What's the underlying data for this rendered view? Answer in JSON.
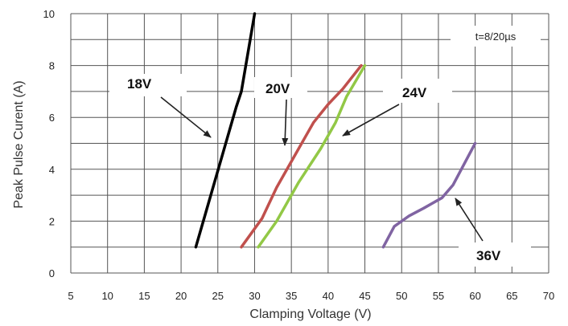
{
  "chart_data": {
    "type": "line",
    "title": "",
    "xlabel": "Clamping Voltage (V)",
    "ylabel": "Peak  Pulse Curent (A)",
    "xlim": [
      5,
      70
    ],
    "ylim": [
      0,
      10
    ],
    "xticks": [
      "5",
      "10",
      "15",
      "20",
      "25",
      "30",
      "35",
      "40",
      "45",
      "50",
      "55",
      "60",
      "65",
      "70"
    ],
    "yticks": [
      "0",
      "2",
      "4",
      "6",
      "8",
      "10"
    ],
    "grid": true,
    "legend": "none",
    "annotation": "t=8/20µs",
    "series": [
      {
        "name": "18V",
        "color": "#000000",
        "points": [
          [
            22.0,
            1.0
          ],
          [
            27.5,
            6.4
          ],
          [
            28.2,
            7.0
          ],
          [
            30.0,
            10.0
          ]
        ]
      },
      {
        "name": "20V",
        "color": "#c0504d",
        "points": [
          [
            28.2,
            1.0
          ],
          [
            31.0,
            2.1
          ],
          [
            33.0,
            3.3
          ],
          [
            36.0,
            4.8
          ],
          [
            38.0,
            5.8
          ],
          [
            40.0,
            6.5
          ],
          [
            42.0,
            7.1
          ],
          [
            44.5,
            8.0
          ]
        ]
      },
      {
        "name": "24V",
        "color": "#92c846",
        "points": [
          [
            30.5,
            1.0
          ],
          [
            33.0,
            2.0
          ],
          [
            36.0,
            3.5
          ],
          [
            39.0,
            4.8
          ],
          [
            41.0,
            5.8
          ],
          [
            42.5,
            6.8
          ],
          [
            45.0,
            8.0
          ]
        ]
      },
      {
        "name": "36V",
        "color": "#8064a2",
        "points": [
          [
            47.5,
            1.0
          ],
          [
            49.0,
            1.8
          ],
          [
            51.0,
            2.2
          ],
          [
            53.0,
            2.5
          ],
          [
            55.5,
            2.9
          ],
          [
            57.0,
            3.4
          ],
          [
            58.5,
            4.2
          ],
          [
            60.0,
            5.0
          ]
        ]
      }
    ]
  }
}
